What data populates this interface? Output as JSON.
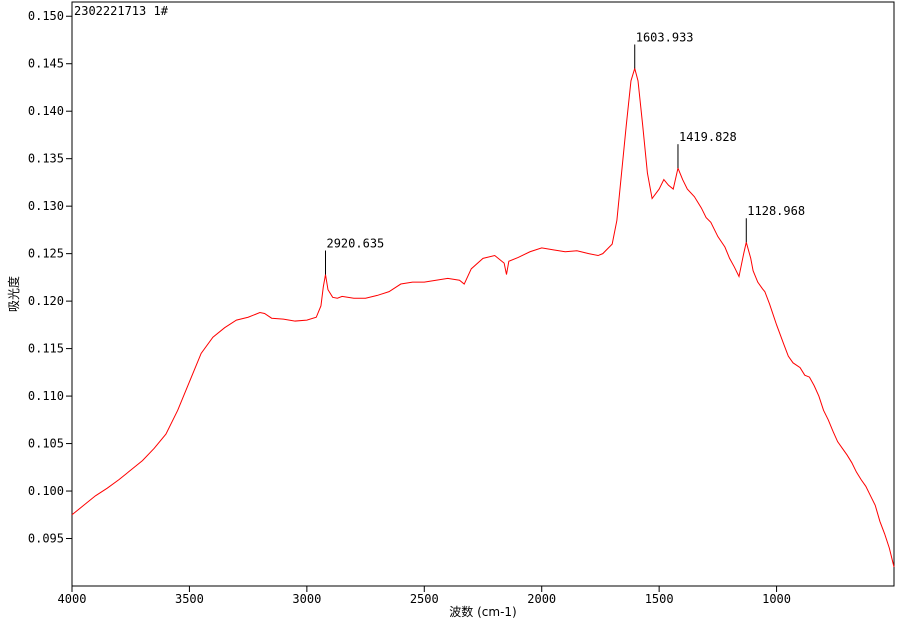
{
  "chart_data": {
    "type": "line",
    "title": "2302221713 1#",
    "xlabel": "波数 (cm-1)",
    "ylabel": "吸光度",
    "xlim": [
      4000,
      500
    ],
    "ylim": [
      0.09,
      0.1515
    ],
    "x_ticks": [
      4000,
      3500,
      3000,
      2500,
      2000,
      1500,
      1000
    ],
    "x_tick_labels": [
      "4000",
      "3500",
      "3000",
      "2500",
      "2000",
      "1500",
      "1000"
    ],
    "y_ticks": [
      0.095,
      0.1,
      0.105,
      0.11,
      0.115,
      0.12,
      0.125,
      0.13,
      0.135,
      0.14,
      0.145,
      0.15
    ],
    "y_tick_labels": [
      "0.095",
      "0.100",
      "0.105",
      "0.110",
      "0.115",
      "0.120",
      "0.125",
      "0.130",
      "0.135",
      "0.140",
      "0.145",
      "0.150"
    ],
    "grid": false,
    "line_color": "#ff0000",
    "series": [
      {
        "x": [
          4000,
          3950,
          3900,
          3850,
          3800,
          3750,
          3700,
          3650,
          3600,
          3550,
          3500,
          3450,
          3400,
          3350,
          3300,
          3250,
          3200,
          3180,
          3150,
          3100,
          3050,
          3000,
          2960,
          2940,
          2930,
          2920.635,
          2910,
          2890,
          2870,
          2850,
          2800,
          2750,
          2700,
          2650,
          2600,
          2550,
          2500,
          2450,
          2400,
          2350,
          2330,
          2300,
          2250,
          2200,
          2160,
          2150,
          2140,
          2100,
          2050,
          2000,
          1950,
          1900,
          1850,
          1800,
          1760,
          1740,
          1720,
          1700,
          1680,
          1660,
          1640,
          1620,
          1603.933,
          1590,
          1570,
          1550,
          1530,
          1500,
          1480,
          1460,
          1440,
          1419.828,
          1400,
          1380,
          1350,
          1320,
          1300,
          1280,
          1250,
          1220,
          1200,
          1180,
          1160,
          1150,
          1140,
          1128.968,
          1110,
          1100,
          1080,
          1060,
          1050,
          1030,
          1000,
          970,
          950,
          930,
          900,
          880,
          860,
          840,
          820,
          800,
          780,
          760,
          740,
          720,
          700,
          680,
          660,
          640,
          620,
          600,
          580,
          560,
          540,
          520,
          500
        ],
        "y": [
          0.0975,
          0.0985,
          0.0995,
          0.1003,
          0.1012,
          0.1022,
          0.1032,
          0.1045,
          0.106,
          0.1085,
          0.1115,
          0.1145,
          0.1162,
          0.1172,
          0.118,
          0.1183,
          0.1188,
          0.1187,
          0.1182,
          0.1181,
          0.1179,
          0.118,
          0.1183,
          0.1195,
          0.1215,
          0.1228,
          0.1212,
          0.1204,
          0.1203,
          0.1205,
          0.1203,
          0.1203,
          0.1206,
          0.121,
          0.1218,
          0.122,
          0.122,
          0.1222,
          0.1224,
          0.1222,
          0.1218,
          0.1234,
          0.1245,
          0.1248,
          0.124,
          0.1228,
          0.1242,
          0.1246,
          0.1252,
          0.1256,
          0.1254,
          0.1252,
          0.1253,
          0.125,
          0.1248,
          0.125,
          0.1255,
          0.126,
          0.1285,
          0.1335,
          0.1385,
          0.1432,
          0.1445,
          0.1432,
          0.1385,
          0.1335,
          0.1308,
          0.1318,
          0.1328,
          0.1322,
          0.1318,
          0.134,
          0.1328,
          0.1318,
          0.131,
          0.1298,
          0.1288,
          0.1283,
          0.1268,
          0.1257,
          0.1245,
          0.1236,
          0.1226,
          0.1238,
          0.125,
          0.1262,
          0.1245,
          0.1232,
          0.122,
          0.1213,
          0.121,
          0.1197,
          0.1175,
          0.1155,
          0.1142,
          0.1135,
          0.113,
          0.1122,
          0.112,
          0.1111,
          0.11,
          0.1085,
          0.1075,
          0.1063,
          0.1052,
          0.1045,
          0.1038,
          0.103,
          0.102,
          0.1012,
          0.1005,
          0.0995,
          0.0985,
          0.0968,
          0.0955,
          0.094,
          0.092
        ]
      }
    ],
    "annotations": [
      {
        "x": 2920.635,
        "y": 0.1228,
        "label": "2920.635"
      },
      {
        "x": 1603.933,
        "y": 0.1445,
        "label": "1603.933"
      },
      {
        "x": 1419.828,
        "y": 0.134,
        "label": "1419.828"
      },
      {
        "x": 1128.968,
        "y": 0.1262,
        "label": "1128.968"
      }
    ]
  }
}
